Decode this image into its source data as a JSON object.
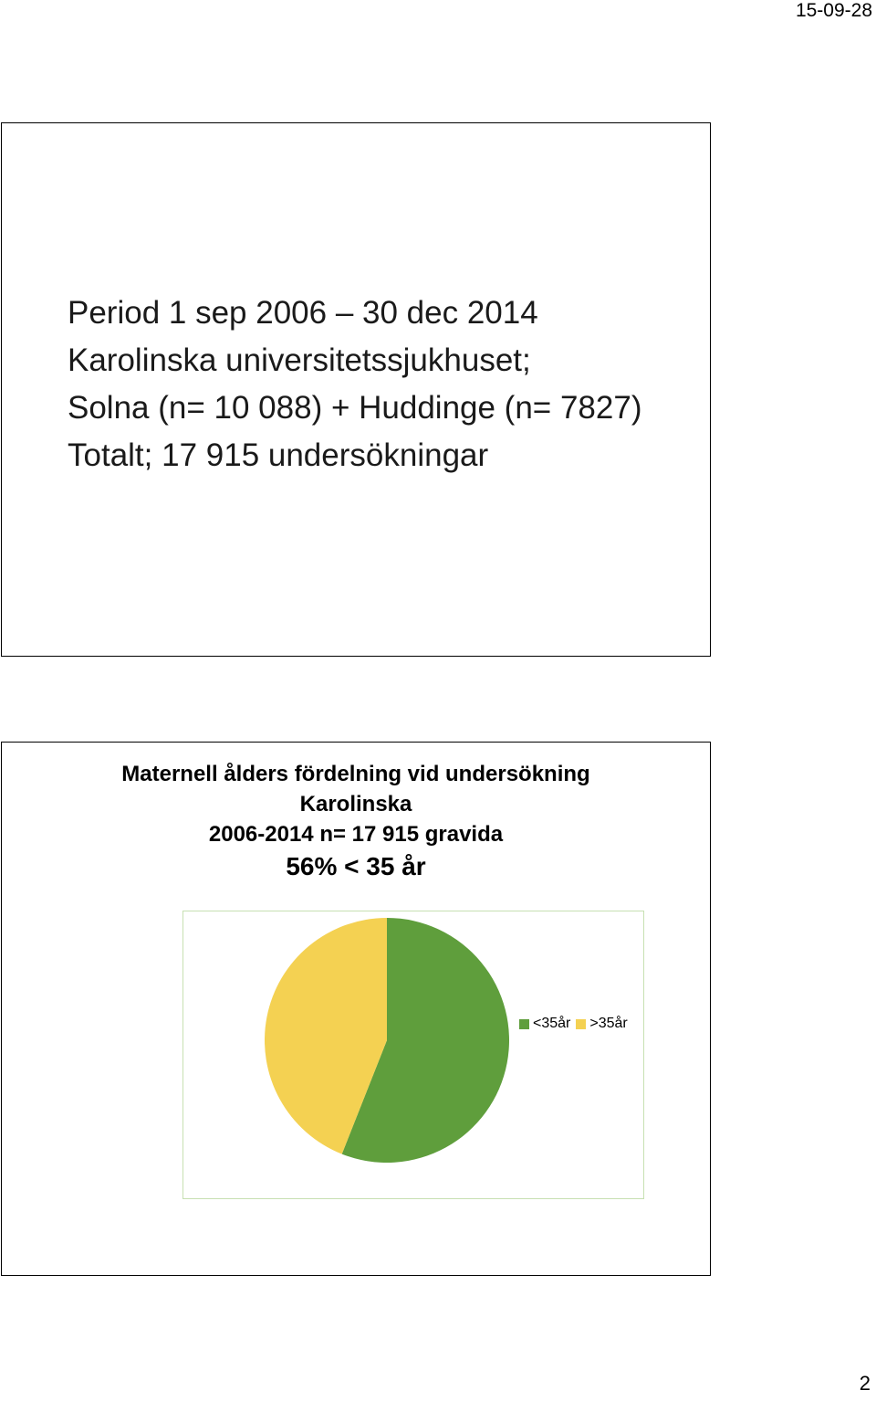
{
  "header": {
    "date": "15-09-28"
  },
  "slide1": {
    "lines": [
      "Period 1 sep 2006 – 30 dec 2014",
      "Karolinska universitetssjukhuset;",
      "Solna (n= 10 088) + Huddinge (n= 7827)",
      "Totalt; 17 915 undersökningar"
    ]
  },
  "slide2": {
    "title_lines": [
      "Maternell ålders fördelning vid undersökning",
      "Karolinska",
      "2006-2014 n= 17 915 gravida"
    ],
    "headline": "56% < 35 år"
  },
  "chart_data": {
    "type": "pie",
    "title": "",
    "categories": [
      "<35år",
      ">35år"
    ],
    "values": [
      56,
      44
    ],
    "colors": [
      "#5f9e3c",
      "#f4d152"
    ],
    "legend": "right"
  },
  "footer": {
    "page_number": "2"
  }
}
